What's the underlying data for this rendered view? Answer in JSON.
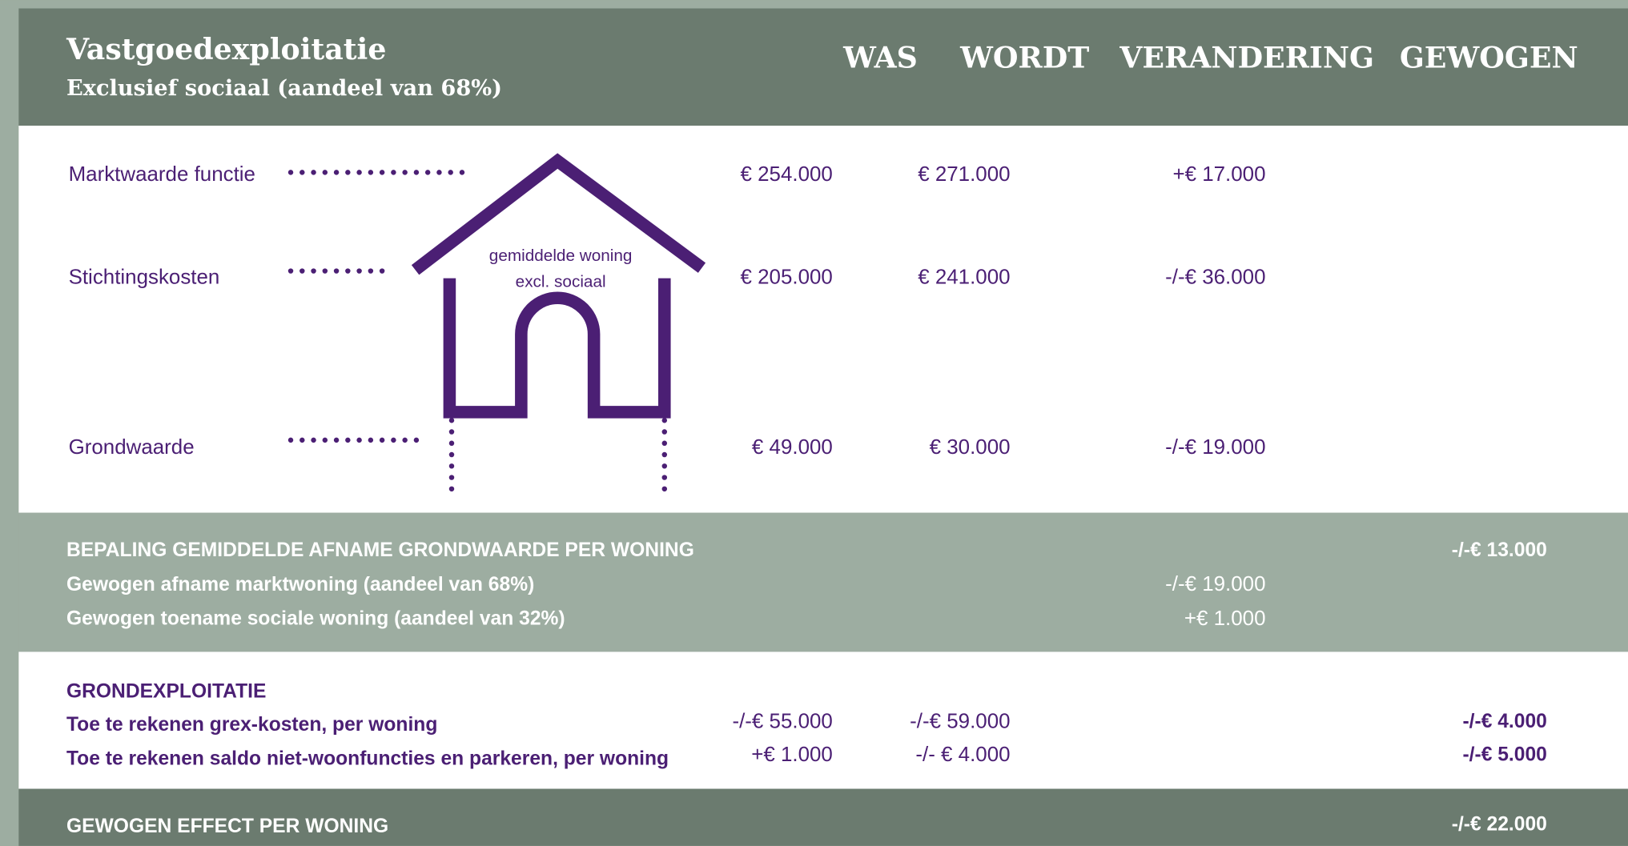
{
  "header": {
    "title": "Vastgoedexploitatie",
    "subtitle": "Exclusief sociaal (aandeel van 68%)",
    "columns": [
      "WAS",
      "WORDT",
      "VERANDERING",
      "GEWOGEN"
    ]
  },
  "vastgoed": {
    "house_label": [
      "gemiddelde woning",
      "excl. sociaal"
    ],
    "rows": [
      {
        "label": "Marktwaarde functie",
        "was": "€ 254.000",
        "wordt": "€ 271.000",
        "verandering": "+€ 17.000"
      },
      {
        "label": "Stichtingskosten",
        "was": "€ 205.000",
        "wordt": "€ 241.000",
        "verandering": "-/-€ 36.000"
      },
      {
        "label": "Grondwaarde",
        "was": "€ 49.000",
        "wordt": "€ 30.000",
        "verandering": "-/-€ 19.000"
      }
    ]
  },
  "bepaling": {
    "title": "BEPALING GEMIDDELDE AFNAME GRONDWAARDE PER WONING",
    "gewogen": "-/-€ 13.000",
    "rows": [
      {
        "label": "Gewogen afname marktwoning (aandeel van 68%)",
        "verandering": "-/-€ 19.000"
      },
      {
        "label": "Gewogen toename sociale woning (aandeel van 32%)",
        "verandering": "+€ 1.000"
      }
    ]
  },
  "grondexploitatie": {
    "title": "GRONDEXPLOITATIE",
    "rows": [
      {
        "label": "Toe te rekenen grex-kosten, per woning",
        "was": "-/-€ 55.000",
        "wordt": "-/-€ 59.000",
        "gewogen": "-/-€ 4.000"
      },
      {
        "label": "Toe te rekenen saldo niet-woonfuncties en parkeren, per woning",
        "was": "+€ 1.000",
        "wordt": "-/- € 4.000",
        "gewogen": "-/-€ 5.000"
      }
    ]
  },
  "footer": {
    "label": "GEWOGEN EFFECT PER WONING",
    "value": "-/-€ 22.000"
  }
}
